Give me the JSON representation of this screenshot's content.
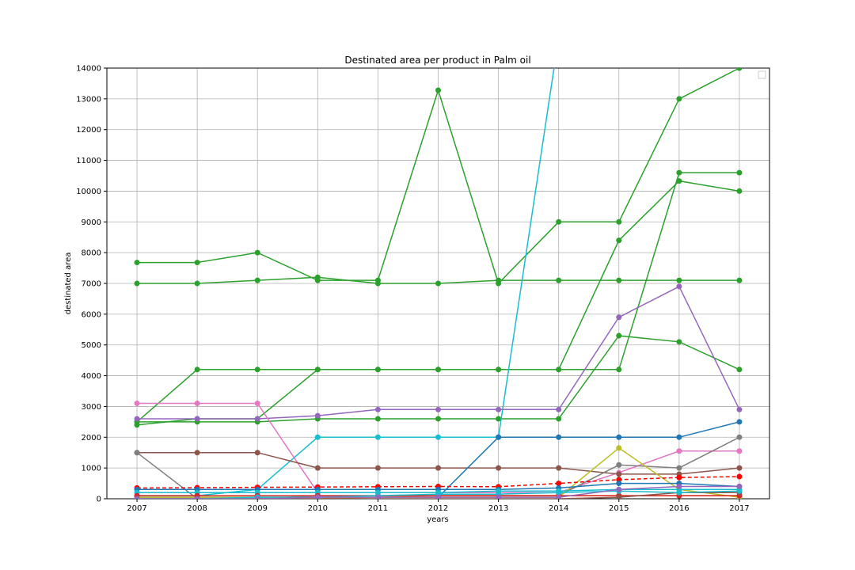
{
  "chart_data": {
    "type": "line",
    "title": "Destinated area per product in Palm oil",
    "xlabel": "years",
    "ylabel": "destinated area",
    "x": [
      2007,
      2008,
      2009,
      2010,
      2011,
      2012,
      2013,
      2014,
      2015,
      2016,
      2017
    ],
    "xlim": [
      2006.5,
      2017.5
    ],
    "ylim": [
      0,
      14000
    ],
    "yticks": [
      0,
      1000,
      2000,
      3000,
      4000,
      5000,
      6000,
      7000,
      8000,
      9000,
      10000,
      11000,
      12000,
      13000,
      14000
    ],
    "grid": true,
    "legend": "top-right (empty)",
    "series": [
      {
        "color": "#2ca02c",
        "marker": true,
        "values": [
          7680,
          7680,
          8000,
          7100,
          7100,
          13280,
          7000,
          9000,
          9000,
          13000,
          14000
        ]
      },
      {
        "color": "#2ca02c",
        "marker": true,
        "values": [
          7000,
          7000,
          7100,
          7200,
          7000,
          7000,
          7100,
          7100,
          7100,
          7100,
          7100
        ]
      },
      {
        "color": "#2ca02c",
        "marker": true,
        "values": [
          2500,
          4200,
          4200,
          4200,
          4200,
          4200,
          4200,
          4200,
          4200,
          10600,
          10600
        ]
      },
      {
        "color": "#2ca02c",
        "marker": true,
        "values": [
          2400,
          2600,
          2600,
          4200,
          4200,
          4200,
          4200,
          4200,
          8400,
          10330,
          10000
        ]
      },
      {
        "color": "#2ca02c",
        "marker": true,
        "values": [
          2500,
          2500,
          2500,
          2600,
          2600,
          2600,
          2600,
          2600,
          5300,
          5100,
          4200
        ]
      },
      {
        "color": "#17becf",
        "marker": true,
        "values": [
          100,
          100,
          300,
          2000,
          2000,
          2000,
          2000,
          15000,
          null,
          null,
          null
        ]
      },
      {
        "color": "#9467bd",
        "marker": true,
        "values": [
          2600,
          2600,
          2600,
          2700,
          2900,
          2900,
          2900,
          2900,
          5900,
          6900,
          2900
        ]
      },
      {
        "color": "#e377c2",
        "marker": true,
        "values": [
          3100,
          3100,
          3100,
          200,
          200,
          200,
          200,
          200,
          850,
          1550,
          1550
        ]
      },
      {
        "color": "#8c564b",
        "marker": true,
        "values": [
          1500,
          1500,
          1500,
          1000,
          1000,
          1000,
          1000,
          1000,
          800,
          800,
          1000
        ]
      },
      {
        "color": "#7f7f7f",
        "marker": true,
        "values": [
          1500,
          0,
          0,
          100,
          100,
          100,
          100,
          100,
          1100,
          1000,
          2000
        ]
      },
      {
        "color": "#1f77b4",
        "marker": true,
        "values": [
          50,
          50,
          50,
          50,
          50,
          50,
          2000,
          2000,
          2000,
          2000,
          2500
        ]
      },
      {
        "color": "#bcbd22",
        "marker": true,
        "values": [
          50,
          50,
          50,
          50,
          50,
          50,
          50,
          50,
          1650,
          300,
          50
        ]
      },
      {
        "color": "#ff0000",
        "marker": true,
        "dashed": true,
        "values": [
          350,
          360,
          370,
          380,
          390,
          400,
          390,
          500,
          620,
          690,
          720
        ]
      },
      {
        "color": "#1f77b4",
        "marker": true,
        "values": [
          300,
          300,
          300,
          300,
          300,
          300,
          300,
          350,
          500,
          500,
          400
        ]
      },
      {
        "color": "#17becf",
        "marker": true,
        "values": [
          200,
          200,
          200,
          200,
          200,
          200,
          250,
          250,
          300,
          300,
          300
        ]
      },
      {
        "color": "#ff7f0e",
        "marker": true,
        "values": [
          0,
          0,
          0,
          0,
          50,
          100,
          100,
          100,
          100,
          100,
          100
        ]
      },
      {
        "color": "#d62728",
        "marker": true,
        "values": [
          100,
          100,
          100,
          100,
          100,
          100,
          100,
          100,
          100,
          100,
          100
        ]
      },
      {
        "color": "#8c564b",
        "marker": true,
        "values": [
          0,
          0,
          0,
          0,
          0,
          0,
          0,
          0,
          50,
          200,
          200
        ]
      },
      {
        "color": "#17becf",
        "marker": true,
        "values": [
          0,
          0,
          50,
          50,
          100,
          150,
          150,
          200,
          250,
          200,
          250
        ]
      },
      {
        "color": "#9467bd",
        "marker": true,
        "values": [
          0,
          0,
          0,
          50,
          50,
          50,
          50,
          50,
          300,
          400,
          400
        ]
      }
    ]
  }
}
